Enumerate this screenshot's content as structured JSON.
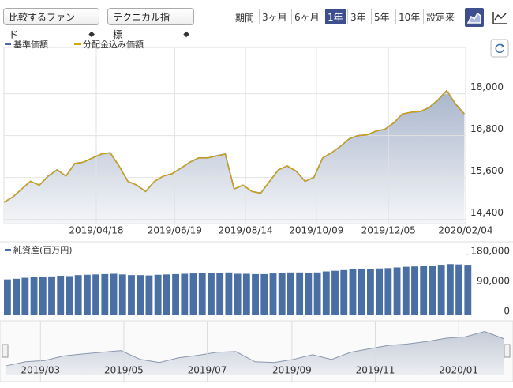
{
  "toolbar": {
    "compare_fund": "比較するファンド",
    "technical": "テクニカル指標",
    "period_label": "期間",
    "periods": [
      "3ヶ月",
      "6ヶ月",
      "1年",
      "3年",
      "5年",
      "10年",
      "設定来"
    ],
    "active_period": "1年"
  },
  "chart_data": [
    {
      "type": "line",
      "x": [
        "2019/02/04",
        "2019/02/11",
        "2019/02/18",
        "2019/02/25",
        "2019/03/04",
        "2019/03/11",
        "2019/03/18",
        "2019/03/25",
        "2019/04/01",
        "2019/04/08",
        "2019/04/15",
        "2019/04/22",
        "2019/04/29",
        "2019/05/06",
        "2019/05/13",
        "2019/05/20",
        "2019/05/27",
        "2019/06/03",
        "2019/06/10",
        "2019/06/17",
        "2019/06/24",
        "2019/07/01",
        "2019/07/08",
        "2019/07/15",
        "2019/07/22",
        "2019/07/29",
        "2019/08/05",
        "2019/08/12",
        "2019/08/19",
        "2019/08/26",
        "2019/09/02",
        "2019/09/09",
        "2019/09/16",
        "2019/09/23",
        "2019/09/30",
        "2019/10/07",
        "2019/10/14",
        "2019/10/21",
        "2019/10/28",
        "2019/11/04",
        "2019/11/11",
        "2019/11/18",
        "2019/11/25",
        "2019/12/02",
        "2019/12/09",
        "2019/12/16",
        "2019/12/23",
        "2019/12/30",
        "2020/01/06",
        "2020/01/13",
        "2020/01/20",
        "2020/01/27",
        "2020/02/03"
      ],
      "series": [
        {
          "name": "基準価額",
          "color": "#4a6fa5",
          "values": [
            14890,
            15040,
            15270,
            15490,
            15380,
            15640,
            15820,
            15640,
            16000,
            16040,
            16160,
            16270,
            16310,
            15930,
            15490,
            15380,
            15200,
            15490,
            15640,
            15710,
            15870,
            16040,
            16160,
            16160,
            16220,
            16270,
            15270,
            15380,
            15200,
            15150,
            15490,
            15820,
            15930,
            15780,
            15490,
            15600,
            16160,
            16310,
            16490,
            16710,
            16800,
            16820,
            16930,
            16980,
            17160,
            17420,
            17470,
            17490,
            17600,
            17820,
            18090,
            17710,
            17420
          ]
        },
        {
          "name": "分配金込み価額",
          "color": "#d9a400",
          "values": [
            14890,
            15040,
            15270,
            15490,
            15380,
            15640,
            15820,
            15640,
            16000,
            16040,
            16160,
            16270,
            16310,
            15930,
            15490,
            15380,
            15200,
            15490,
            15640,
            15710,
            15870,
            16040,
            16160,
            16160,
            16220,
            16270,
            15270,
            15380,
            15200,
            15150,
            15490,
            15820,
            15930,
            15780,
            15490,
            15600,
            16160,
            16310,
            16490,
            16710,
            16800,
            16820,
            16930,
            16980,
            17160,
            17420,
            17470,
            17490,
            17600,
            17820,
            18090,
            17710,
            17420
          ]
        }
      ],
      "xlim": [
        "2019/02/04",
        "2020/02/04"
      ],
      "xticks": [
        "2019/04/18",
        "2019/06/19",
        "2019/08/14",
        "2019/10/09",
        "2019/12/05",
        "2020/02/04"
      ],
      "ylim": [
        14300,
        19100
      ],
      "yticks": [
        {
          "value": 14400,
          "label": "14,400"
        },
        {
          "value": 15600,
          "label": "15,600"
        },
        {
          "value": 16800,
          "label": "16,800"
        },
        {
          "value": 18000,
          "label": "18,000"
        }
      ],
      "grid": true
    },
    {
      "type": "bar",
      "title": "純資産(百万円)",
      "color": "#4a6fa5",
      "x": [
        "2019/02/04",
        "2019/02/11",
        "2019/02/18",
        "2019/02/25",
        "2019/03/04",
        "2019/03/11",
        "2019/03/18",
        "2019/03/25",
        "2019/04/01",
        "2019/04/08",
        "2019/04/15",
        "2019/04/22",
        "2019/04/29",
        "2019/05/06",
        "2019/05/13",
        "2019/05/20",
        "2019/05/27",
        "2019/06/03",
        "2019/06/10",
        "2019/06/17",
        "2019/06/24",
        "2019/07/01",
        "2019/07/08",
        "2019/07/15",
        "2019/07/22",
        "2019/07/29",
        "2019/08/05",
        "2019/08/12",
        "2019/08/19",
        "2019/08/26",
        "2019/09/02",
        "2019/09/09",
        "2019/09/16",
        "2019/09/23",
        "2019/09/30",
        "2019/10/07",
        "2019/10/14",
        "2019/10/21",
        "2019/10/28",
        "2019/11/04",
        "2019/11/11",
        "2019/11/18",
        "2019/11/25",
        "2019/12/02",
        "2019/12/09",
        "2019/12/16",
        "2019/12/23",
        "2019/12/30",
        "2020/01/06",
        "2020/01/13",
        "2020/01/20",
        "2020/01/27",
        "2020/02/03"
      ],
      "values": [
        105000,
        107000,
        110000,
        112000,
        112000,
        114000,
        116000,
        115000,
        118000,
        119000,
        120000,
        121000,
        122000,
        120000,
        118000,
        118000,
        117000,
        119000,
        120000,
        121000,
        122000,
        123000,
        124000,
        124000,
        125000,
        126000,
        122000,
        122000,
        121000,
        121000,
        123000,
        125000,
        126000,
        126000,
        125000,
        126000,
        129000,
        131000,
        133000,
        135000,
        136000,
        137000,
        138000,
        139000,
        141000,
        143000,
        144000,
        145000,
        147000,
        149000,
        151000,
        150000,
        149000
      ],
      "xlim": [
        "2019/02/04",
        "2020/02/04"
      ],
      "ylim": [
        0,
        180000
      ],
      "yticks": [
        0,
        {
          "value": 90000,
          "label": "90,000"
        },
        {
          "value": 180000,
          "label": "180,000"
        }
      ]
    },
    {
      "type": "area",
      "color": "#8a97ad",
      "x": [
        "2019/02/04",
        "2019/02/18",
        "2019/03/04",
        "2019/03/18",
        "2019/04/01",
        "2019/04/15",
        "2019/04/29",
        "2019/05/13",
        "2019/05/27",
        "2019/06/10",
        "2019/06/24",
        "2019/07/08",
        "2019/07/22",
        "2019/08/05",
        "2019/08/19",
        "2019/09/02",
        "2019/09/16",
        "2019/09/30",
        "2019/10/14",
        "2019/10/28",
        "2019/11/11",
        "2019/11/25",
        "2019/12/09",
        "2019/12/23",
        "2020/01/06",
        "2020/01/20",
        "2020/02/03"
      ],
      "values": [
        14890,
        15270,
        15380,
        15820,
        16000,
        16160,
        16310,
        15490,
        15200,
        15640,
        15870,
        16160,
        16220,
        15270,
        15200,
        15490,
        15930,
        15490,
        16160,
        16490,
        16800,
        16930,
        17160,
        17470,
        17600,
        18090,
        17420
      ],
      "xlim": [
        "2019/02/04",
        "2020/02/04"
      ],
      "xticks": [
        "2019/03",
        "2019/05",
        "2019/07",
        "2019/09",
        "2019/11",
        "2020/01"
      ],
      "ylim": [
        14000,
        18500
      ]
    }
  ]
}
